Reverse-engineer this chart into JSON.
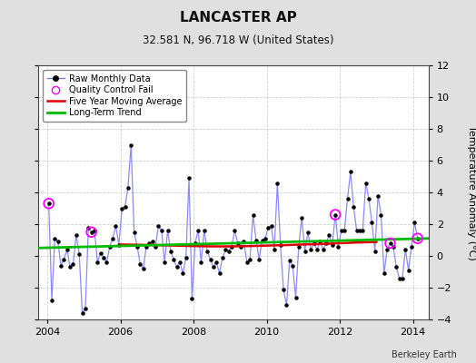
{
  "title": "LANCASTER AP",
  "subtitle": "32.581 N, 96.718 W (United States)",
  "ylabel": "Temperature Anomaly (°C)",
  "credit": "Berkeley Earth",
  "xlim": [
    2003.75,
    2014.42
  ],
  "ylim": [
    -4,
    12
  ],
  "yticks": [
    -4,
    -2,
    0,
    2,
    4,
    6,
    8,
    10,
    12
  ],
  "xticks": [
    2004,
    2006,
    2008,
    2010,
    2012,
    2014
  ],
  "bg_color": "#e0e0e0",
  "plot_bg_color": "#ffffff",
  "raw_color": "#7777ff",
  "raw_dot_color": "#000000",
  "ma_color": "#dd0000",
  "trend_color": "#00bb00",
  "qc_color": "#ff00ff",
  "raw_monthly": [
    2004.042,
    3.3,
    2004.125,
    -2.8,
    2004.208,
    1.1,
    2004.292,
    0.9,
    2004.375,
    -0.6,
    2004.458,
    -0.2,
    2004.542,
    0.4,
    2004.625,
    -0.7,
    2004.708,
    -0.5,
    2004.792,
    1.3,
    2004.875,
    0.1,
    2004.958,
    -3.6,
    2005.042,
    -3.3,
    2005.125,
    1.8,
    2005.208,
    1.5,
    2005.292,
    1.6,
    2005.375,
    -0.4,
    2005.458,
    0.2,
    2005.542,
    -0.1,
    2005.625,
    -0.4,
    2005.708,
    0.6,
    2005.792,
    1.1,
    2005.875,
    1.9,
    2005.958,
    0.7,
    2006.042,
    3.0,
    2006.125,
    3.1,
    2006.208,
    4.3,
    2006.292,
    7.0,
    2006.375,
    1.5,
    2006.458,
    0.6,
    2006.542,
    -0.5,
    2006.625,
    -0.8,
    2006.708,
    0.6,
    2006.792,
    0.8,
    2006.875,
    0.9,
    2006.958,
    0.6,
    2007.042,
    1.9,
    2007.125,
    1.6,
    2007.208,
    -0.4,
    2007.292,
    1.6,
    2007.375,
    0.3,
    2007.458,
    -0.2,
    2007.542,
    -0.7,
    2007.625,
    -0.4,
    2007.708,
    -1.1,
    2007.792,
    -0.1,
    2007.875,
    4.9,
    2007.958,
    -2.7,
    2008.042,
    0.8,
    2008.125,
    1.6,
    2008.208,
    -0.4,
    2008.292,
    1.6,
    2008.375,
    0.3,
    2008.458,
    -0.2,
    2008.542,
    -0.7,
    2008.625,
    -0.4,
    2008.708,
    -1.1,
    2008.792,
    -0.1,
    2008.875,
    0.4,
    2008.958,
    0.3,
    2009.042,
    0.6,
    2009.125,
    1.6,
    2009.208,
    0.8,
    2009.292,
    0.6,
    2009.375,
    0.9,
    2009.458,
    -0.4,
    2009.542,
    -0.2,
    2009.625,
    2.6,
    2009.708,
    1.0,
    2009.792,
    -0.2,
    2009.875,
    1.0,
    2009.958,
    1.1,
    2010.042,
    1.8,
    2010.125,
    1.9,
    2010.208,
    0.4,
    2010.292,
    4.6,
    2010.375,
    0.7,
    2010.458,
    -2.1,
    2010.542,
    -3.1,
    2010.625,
    -0.3,
    2010.708,
    -0.6,
    2010.792,
    -2.6,
    2010.875,
    0.6,
    2010.958,
    2.4,
    2011.042,
    0.3,
    2011.125,
    1.5,
    2011.208,
    0.4,
    2011.292,
    0.8,
    2011.375,
    0.4,
    2011.458,
    0.9,
    2011.542,
    0.4,
    2011.625,
    0.8,
    2011.708,
    1.3,
    2011.792,
    0.7,
    2011.875,
    2.6,
    2011.958,
    0.6,
    2012.042,
    1.6,
    2012.125,
    1.6,
    2012.208,
    3.6,
    2012.292,
    5.3,
    2012.375,
    3.1,
    2012.458,
    1.6,
    2012.542,
    1.6,
    2012.625,
    1.6,
    2012.708,
    4.6,
    2012.792,
    3.6,
    2012.875,
    2.1,
    2012.958,
    0.3,
    2013.042,
    3.8,
    2013.125,
    2.6,
    2013.208,
    -1.1,
    2013.292,
    0.4,
    2013.375,
    0.8,
    2013.458,
    0.6,
    2013.542,
    -0.7,
    2013.625,
    -1.4,
    2013.708,
    -1.4,
    2013.792,
    0.4,
    2013.875,
    -0.9,
    2013.958,
    0.6,
    2014.042,
    2.1,
    2014.125,
    1.1
  ],
  "qc_fail": [
    [
      2004.042,
      3.3
    ],
    [
      2005.208,
      1.5
    ],
    [
      2011.875,
      2.6
    ],
    [
      2013.375,
      0.8
    ],
    [
      2014.125,
      1.1
    ]
  ],
  "moving_avg_x": [
    2006.0,
    2006.5,
    2007.0,
    2007.5,
    2008.0,
    2008.5,
    2009.0,
    2009.5,
    2010.0,
    2010.5,
    2011.0,
    2011.5,
    2012.0,
    2012.5,
    2013.0
  ],
  "moving_avg_y": [
    0.72,
    0.7,
    0.68,
    0.65,
    0.62,
    0.6,
    0.6,
    0.62,
    0.65,
    0.68,
    0.72,
    0.75,
    0.8,
    0.85,
    0.88
  ],
  "trend_x": [
    2003.75,
    2014.42
  ],
  "trend_y": [
    0.5,
    1.1
  ]
}
